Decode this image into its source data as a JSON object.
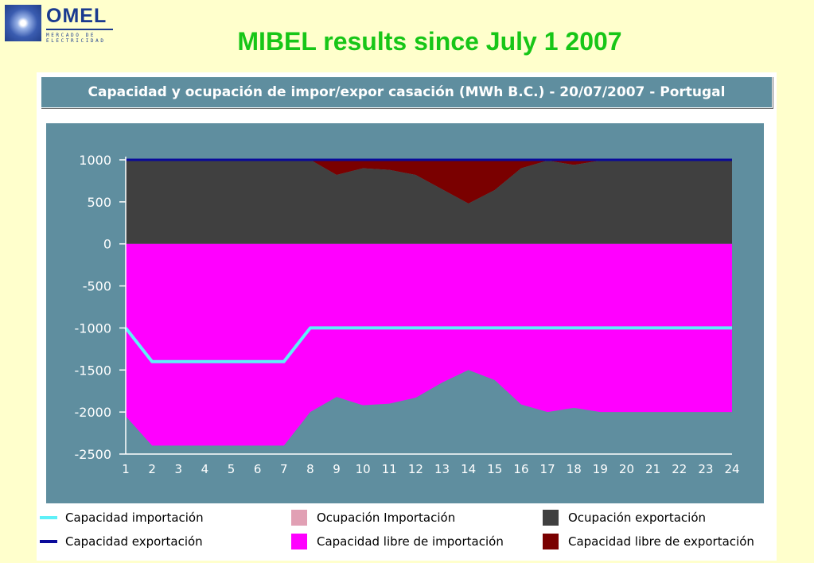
{
  "header": {
    "logo_name": "OMEL",
    "logo_subtitle_1": "MERCADO DE",
    "logo_subtitle_2": "ELECTRICIDAD",
    "title": "MIBEL results since July 1 2007"
  },
  "chart_data": {
    "type": "area",
    "title": "Capacidad y ocupación de impor/expor casación (MWh B.C.) - 20/07/2007 - Portugal",
    "xlabel": "",
    "ylabel": "",
    "x": [
      1,
      2,
      3,
      4,
      5,
      6,
      7,
      8,
      9,
      10,
      11,
      12,
      13,
      14,
      15,
      16,
      17,
      18,
      19,
      20,
      21,
      22,
      23,
      24
    ],
    "ylim": [
      -2500,
      1000
    ],
    "yticks": [
      1000,
      500,
      0,
      -500,
      -1000,
      -1500,
      -2000,
      -2500
    ],
    "grid": false,
    "legend_position": "bottom",
    "series": [
      {
        "name": "Capacidad importación",
        "kind": "line",
        "color": "#5ef0f8",
        "values": [
          -1000,
          -1400,
          -1400,
          -1400,
          -1400,
          -1400,
          -1400,
          -1000,
          -1000,
          -1000,
          -1000,
          -1000,
          -1000,
          -1000,
          -1000,
          -1000,
          -1000,
          -1000,
          -1000,
          -1000,
          -1000,
          -1000,
          -1000,
          -1000
        ]
      },
      {
        "name": "Capacidad exportación",
        "kind": "line",
        "color": "#0a0a9a",
        "values": [
          1000,
          1000,
          1000,
          1000,
          1000,
          1000,
          1000,
          1000,
          1000,
          1000,
          1000,
          1000,
          1000,
          1000,
          1000,
          1000,
          1000,
          1000,
          1000,
          1000,
          1000,
          1000,
          1000,
          1000
        ]
      },
      {
        "name": "Ocupación Importación",
        "kind": "area",
        "color": "#e1a0b4",
        "values": [
          0,
          0,
          0,
          0,
          0,
          0,
          0,
          0,
          0,
          0,
          0,
          0,
          0,
          0,
          0,
          0,
          0,
          0,
          0,
          0,
          0,
          0,
          0,
          0
        ]
      },
      {
        "name": "Capacidad libre de importación",
        "kind": "area",
        "color": "#ff00ff",
        "values": [
          -2050,
          -2400,
          -2400,
          -2400,
          -2400,
          -2400,
          -2400,
          -2000,
          -1820,
          -1920,
          -1900,
          -1830,
          -1650,
          -1500,
          -1620,
          -1910,
          -2000,
          -1950,
          -2000,
          -2000,
          -2000,
          -2000,
          -2000,
          -2000
        ]
      },
      {
        "name": "Ocupación exportación",
        "kind": "area",
        "color": "#404040",
        "values": [
          1000,
          1000,
          1000,
          1000,
          1000,
          1000,
          1000,
          1000,
          820,
          900,
          880,
          820,
          650,
          480,
          640,
          900,
          990,
          940,
          990,
          1000,
          1000,
          1000,
          1000,
          1000
        ]
      },
      {
        "name": "Capacidad libre de exportación",
        "kind": "area",
        "color": "#7a0000",
        "values": [
          0,
          0,
          0,
          0,
          0,
          0,
          0,
          0,
          180,
          100,
          120,
          180,
          350,
          520,
          360,
          100,
          10,
          60,
          10,
          0,
          0,
          0,
          0,
          0
        ]
      }
    ]
  }
}
